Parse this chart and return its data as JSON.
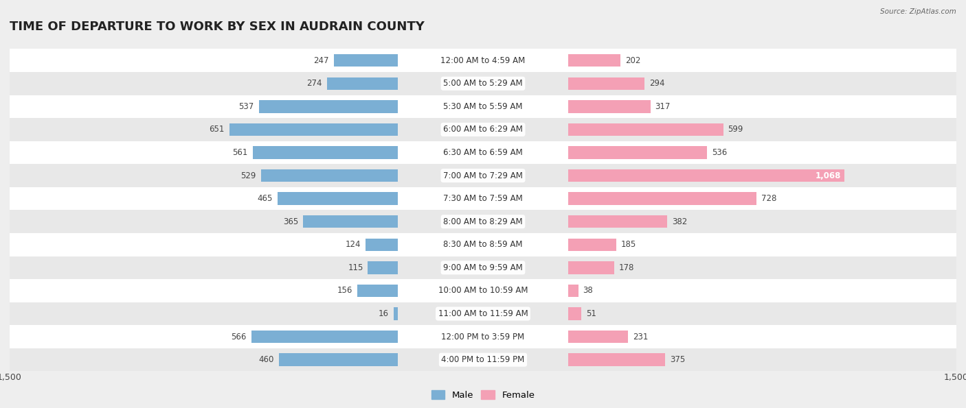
{
  "title": "TIME OF DEPARTURE TO WORK BY SEX IN AUDRAIN COUNTY",
  "source": "Source: ZipAtlas.com",
  "categories": [
    "12:00 AM to 4:59 AM",
    "5:00 AM to 5:29 AM",
    "5:30 AM to 5:59 AM",
    "6:00 AM to 6:29 AM",
    "6:30 AM to 6:59 AM",
    "7:00 AM to 7:29 AM",
    "7:30 AM to 7:59 AM",
    "8:00 AM to 8:29 AM",
    "8:30 AM to 8:59 AM",
    "9:00 AM to 9:59 AM",
    "10:00 AM to 10:59 AM",
    "11:00 AM to 11:59 AM",
    "12:00 PM to 3:59 PM",
    "4:00 PM to 11:59 PM"
  ],
  "male_values": [
    247,
    274,
    537,
    651,
    561,
    529,
    465,
    365,
    124,
    115,
    156,
    16,
    566,
    460
  ],
  "female_values": [
    202,
    294,
    317,
    599,
    536,
    1068,
    728,
    382,
    185,
    178,
    38,
    51,
    231,
    375
  ],
  "male_color": "#7bafd4",
  "female_color": "#f4a0b5",
  "female_color_dark": "#f080a0",
  "bar_height": 0.55,
  "xlim": 1500,
  "background_color": "#eeeeee",
  "row_colors_light": [
    "#ffffff",
    "#e8e8e8"
  ],
  "title_fontsize": 13,
  "val_fontsize": 8.5,
  "cat_fontsize": 8.5,
  "axis_label_fontsize": 9,
  "legend_fontsize": 9.5
}
